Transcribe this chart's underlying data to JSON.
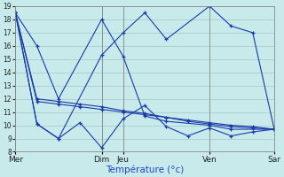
{
  "xlabel": "Température (°c)",
  "background_color": "#c8eaea",
  "grid_color": "#a0c8c8",
  "line_color": "#1a3aaa",
  "figsize": [
    3.2,
    2.0
  ],
  "dpi": 100,
  "ylim": [
    8,
    19
  ],
  "yticks": [
    8,
    9,
    10,
    11,
    12,
    13,
    14,
    15,
    16,
    17,
    18,
    19
  ],
  "xlim": [
    0,
    48
  ],
  "x_day_ticks": [
    0,
    16,
    20,
    36,
    48
  ],
  "x_day_labels": [
    "Mer",
    "Dim",
    "Jeu",
    "Ven",
    "Sar"
  ],
  "lines": [
    {
      "x": [
        0,
        4,
        8,
        16,
        20,
        24,
        28,
        36,
        40,
        48
      ],
      "y": [
        18.5,
        16.0,
        12.0,
        18.0,
        15.2,
        10.7,
        10.3,
        10.0,
        9.7,
        9.7
      ]
    },
    {
      "x": [
        0,
        4,
        8,
        12,
        16,
        20,
        24,
        28,
        32,
        36,
        40,
        44,
        48
      ],
      "y": [
        18.5,
        12.0,
        11.8,
        11.6,
        11.4,
        11.1,
        10.9,
        10.6,
        10.4,
        10.2,
        10.0,
        9.9,
        9.7
      ]
    },
    {
      "x": [
        0,
        4,
        8,
        12,
        16,
        20,
        24,
        28,
        32,
        36,
        40,
        44,
        48
      ],
      "y": [
        18.5,
        11.8,
        11.6,
        11.4,
        11.2,
        11.0,
        10.8,
        10.6,
        10.3,
        10.1,
        9.9,
        9.8,
        9.7
      ]
    },
    {
      "x": [
        0,
        4,
        8,
        12,
        16,
        20,
        24,
        28,
        32,
        36,
        40,
        44,
        48
      ],
      "y": [
        18.5,
        10.1,
        9.0,
        10.2,
        8.3,
        10.5,
        11.5,
        9.9,
        9.2,
        9.8,
        9.2,
        9.5,
        9.7
      ]
    },
    {
      "x": [
        0,
        4,
        8,
        16,
        20,
        24,
        28,
        36,
        40,
        44,
        48
      ],
      "y": [
        18.5,
        10.1,
        9.0,
        15.3,
        17.0,
        18.5,
        16.5,
        19.0,
        17.5,
        17.0,
        9.7
      ]
    }
  ]
}
